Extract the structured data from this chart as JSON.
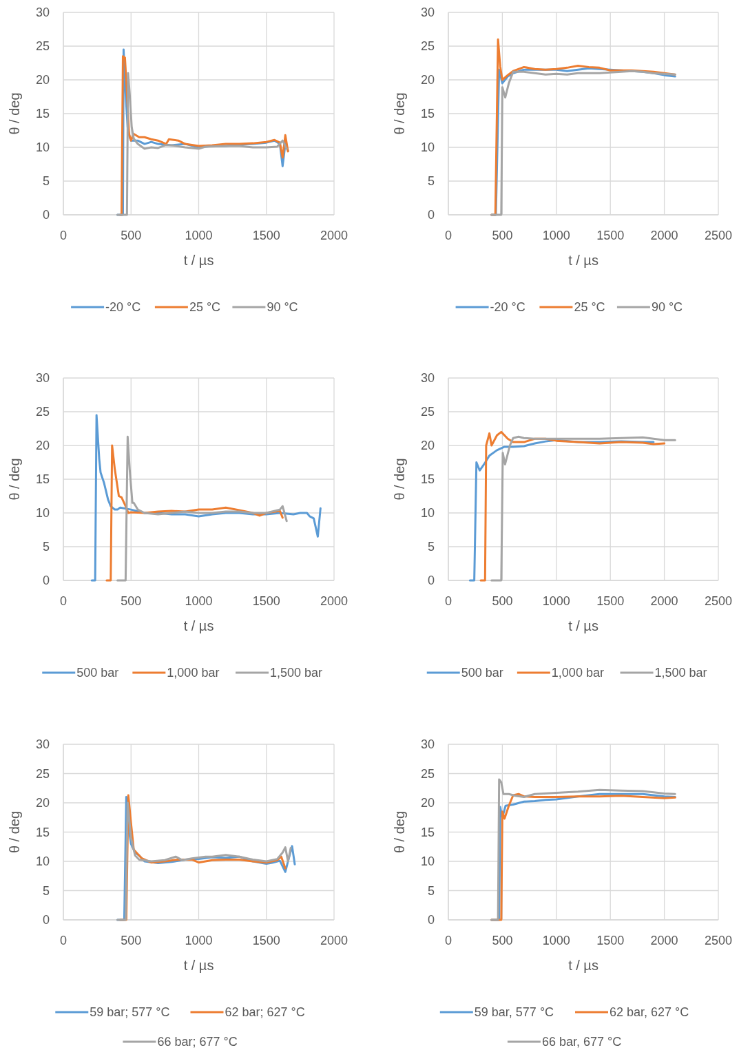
{
  "chart_data": [
    {
      "type": "line",
      "xlabel": "t / µs",
      "ylabel": "θ / deg",
      "xlim": [
        0,
        2000
      ],
      "xticks": [
        0,
        500,
        1000,
        1500,
        2000
      ],
      "ylim": [
        0,
        30
      ],
      "yticks": [
        0,
        5,
        10,
        15,
        20,
        25,
        30
      ],
      "grid": true,
      "legend": "bottom",
      "series": [
        {
          "name": "-20 °C",
          "color": "#5b9bd5",
          "x": [
            400,
            440,
            445,
            460,
            475,
            490,
            500,
            550,
            600,
            650,
            700,
            800,
            900,
            1000,
            1100,
            1200,
            1300,
            1400,
            1500,
            1560,
            1600,
            1620,
            1640,
            1660
          ],
          "values": [
            0,
            0,
            24.5,
            18,
            13,
            11.5,
            11,
            11,
            10.5,
            10.8,
            10.5,
            10.3,
            10.5,
            10.0,
            10.2,
            10.2,
            10.4,
            10.5,
            10.7,
            11,
            10.5,
            7.2,
            10.5,
            9.5
          ]
        },
        {
          "name": "25 °C",
          "color": "#ed7d31",
          "x": [
            420,
            430,
            440,
            455,
            470,
            485,
            500,
            520,
            560,
            600,
            650,
            700,
            760,
            780,
            850,
            900,
            1000,
            1100,
            1200,
            1300,
            1400,
            1500,
            1560,
            1600,
            1620,
            1640,
            1660
          ],
          "values": [
            0,
            0,
            23.5,
            23.3,
            18,
            12,
            11,
            12,
            11.5,
            11.5,
            11.2,
            11.0,
            10.5,
            11.2,
            11,
            10.5,
            10.2,
            10.3,
            10.5,
            10.5,
            10.6,
            10.8,
            11.1,
            10.7,
            8.5,
            11.8,
            9.4
          ]
        },
        {
          "name": "90 °C",
          "color": "#a5a5a5",
          "x": [
            400,
            470,
            478,
            490,
            505,
            520,
            550,
            600,
            650,
            700,
            750,
            800,
            900,
            1000,
            1050,
            1200,
            1300,
            1400,
            1500,
            1580,
            1620,
            1650
          ],
          "values": [
            0,
            0,
            21,
            18,
            13,
            11.3,
            10.5,
            9.8,
            10,
            9.9,
            10.3,
            10.3,
            10.0,
            9.8,
            10.1,
            10.2,
            10.2,
            10.0,
            10,
            10.1,
            11,
            9.8
          ]
        }
      ]
    },
    {
      "type": "line",
      "xlabel": "t / µs",
      "ylabel": "θ / deg",
      "xlim": [
        0,
        2500
      ],
      "xticks": [
        0,
        500,
        1000,
        1500,
        2000,
        2500
      ],
      "ylim": [
        0,
        30
      ],
      "yticks": [
        0,
        5,
        10,
        15,
        20,
        25,
        30
      ],
      "grid": true,
      "legend": "bottom",
      "series": [
        {
          "name": "-20 °C",
          "color": "#5b9bd5",
          "x": [
            400,
            440,
            470,
            500,
            550,
            600,
            700,
            800,
            900,
            1000,
            1100,
            1200,
            1300,
            1400,
            1500,
            1600,
            1700,
            1800,
            1900,
            2000,
            2100
          ],
          "values": [
            0,
            0,
            21.5,
            19.5,
            20.5,
            21,
            21.5,
            21.5,
            21.5,
            21.5,
            21.3,
            21.5,
            21.7,
            21.6,
            21.5,
            21.4,
            21.3,
            21.2,
            21,
            20.7,
            20.5
          ]
        },
        {
          "name": "25 °C",
          "color": "#ed7d31",
          "x": [
            400,
            435,
            460,
            480,
            500,
            550,
            600,
            700,
            800,
            900,
            1000,
            1100,
            1200,
            1300,
            1400,
            1500,
            1600,
            1700,
            1800,
            1900,
            2000,
            2100
          ],
          "values": [
            0,
            0,
            26,
            22,
            20,
            20.7,
            21.3,
            21.9,
            21.6,
            21.5,
            21.6,
            21.8,
            22.1,
            21.9,
            21.8,
            21.4,
            21.4,
            21.4,
            21.3,
            21.2,
            21,
            20.8
          ]
        },
        {
          "name": "90 °C",
          "color": "#a5a5a5",
          "x": [
            400,
            490,
            500,
            527,
            560,
            600,
            700,
            800,
            900,
            1000,
            1100,
            1200,
            1300,
            1400,
            1500,
            1600,
            1700,
            1800,
            1900,
            2000,
            2100
          ],
          "values": [
            0,
            0,
            18.9,
            17.4,
            19.5,
            21.2,
            21.2,
            21,
            20.8,
            20.9,
            20.8,
            21.0,
            21.0,
            21.0,
            21.1,
            21.2,
            21.3,
            21.2,
            21,
            20.9,
            20.8
          ]
        }
      ]
    },
    {
      "type": "line",
      "xlabel": "t / µs",
      "ylabel": "θ / deg",
      "xlim": [
        0,
        2000
      ],
      "xticks": [
        0,
        500,
        1000,
        1500,
        2000
      ],
      "ylim": [
        0,
        30
      ],
      "yticks": [
        0,
        5,
        10,
        15,
        20,
        25,
        30
      ],
      "grid": true,
      "legend": "bottom",
      "series": [
        {
          "name": "500 bar",
          "color": "#5b9bd5",
          "x": [
            210,
            235,
            245,
            265,
            275,
            300,
            330,
            350,
            380,
            400,
            420,
            500,
            600,
            700,
            800,
            900,
            1000,
            1100,
            1200,
            1300,
            1400,
            1500,
            1600,
            1700,
            1750,
            1800,
            1820,
            1850,
            1880,
            1900
          ],
          "values": [
            0,
            0,
            24.5,
            18,
            16,
            14.5,
            12,
            11,
            10.5,
            10.5,
            10.8,
            10.5,
            10,
            10,
            9.8,
            9.8,
            9.5,
            9.8,
            10,
            10,
            9.8,
            9.8,
            10,
            9.8,
            10,
            10,
            9.5,
            9.2,
            6.5,
            10.7
          ]
        },
        {
          "name": "1,000 bar",
          "color": "#ed7d31",
          "x": [
            320,
            350,
            360,
            380,
            410,
            430,
            460,
            480,
            500,
            600,
            700,
            800,
            900,
            1000,
            1100,
            1200,
            1300,
            1400,
            1450,
            1500,
            1600,
            1620
          ],
          "values": [
            0,
            0,
            20,
            16.5,
            12.5,
            12.3,
            11,
            10,
            10.1,
            10,
            10.2,
            10.3,
            10.2,
            10.5,
            10.5,
            10.8,
            10.4,
            10,
            9.6,
            10,
            10.3,
            9.3
          ]
        },
        {
          "name": "1,500 bar",
          "color": "#a5a5a5",
          "x": [
            400,
            460,
            475,
            490,
            510,
            520,
            550,
            600,
            700,
            800,
            900,
            1000,
            1100,
            1200,
            1300,
            1400,
            1500,
            1600,
            1620,
            1650
          ],
          "values": [
            0,
            0,
            21.3,
            16.5,
            11.5,
            11.5,
            10.5,
            10,
            9.8,
            10,
            10.2,
            10,
            10,
            10.2,
            10.2,
            10,
            10,
            10.5,
            11,
            8.8
          ]
        }
      ]
    },
    {
      "type": "line",
      "xlabel": "t / µs",
      "ylabel": "θ / deg",
      "xlim": [
        0,
        2500
      ],
      "xticks": [
        0,
        500,
        1000,
        1500,
        2000,
        2500
      ],
      "ylim": [
        0,
        30
      ],
      "yticks": [
        0,
        5,
        10,
        15,
        20,
        25,
        30
      ],
      "grid": true,
      "legend": "bottom",
      "series": [
        {
          "name": "500 bar",
          "color": "#5b9bd5",
          "x": [
            200,
            240,
            260,
            290,
            330,
            380,
            450,
            520,
            600,
            700,
            800,
            900,
            1000,
            1200,
            1400,
            1600,
            1800,
            1900
          ],
          "values": [
            0,
            0,
            17.5,
            16.3,
            17.2,
            18.5,
            19.3,
            19.8,
            19.8,
            19.9,
            20.3,
            20.6,
            20.8,
            20.5,
            20.5,
            20.6,
            20.5,
            20.5
          ]
        },
        {
          "name": "1,000 bar",
          "color": "#ed7d31",
          "x": [
            300,
            340,
            350,
            380,
            400,
            450,
            490,
            550,
            600,
            700,
            800,
            900,
            1000,
            1200,
            1400,
            1600,
            1800,
            1900,
            2000
          ],
          "values": [
            0,
            0,
            20,
            21.8,
            20,
            21.5,
            22,
            21,
            20.5,
            20.5,
            21,
            21,
            20.7,
            20.5,
            20.3,
            20.5,
            20.4,
            20.2,
            20.3
          ]
        },
        {
          "name": "1,500 bar",
          "color": "#a5a5a5",
          "x": [
            400,
            490,
            504,
            525,
            570,
            600,
            650,
            700,
            800,
            900,
            1000,
            1200,
            1400,
            1600,
            1800,
            1900,
            2000,
            2100
          ],
          "values": [
            0,
            0,
            18.9,
            17.2,
            20,
            21.1,
            21.3,
            21.1,
            21,
            21,
            21,
            21,
            21,
            21.1,
            21.2,
            21,
            20.8,
            20.8
          ]
        }
      ]
    },
    {
      "type": "line",
      "xlabel": "t / µs",
      "ylabel": "θ / deg",
      "xlim": [
        0,
        2000
      ],
      "xticks": [
        0,
        500,
        1000,
        1500,
        2000
      ],
      "ylim": [
        0,
        30
      ],
      "yticks": [
        0,
        5,
        10,
        15,
        20,
        25,
        30
      ],
      "grid": true,
      "legend": "bottom",
      "series": [
        {
          "name": "59 bar; 577 °C",
          "color": "#5b9bd5",
          "x": [
            400,
            450,
            465,
            480,
            500,
            530,
            560,
            600,
            700,
            800,
            900,
            1000,
            1100,
            1200,
            1300,
            1400,
            1500,
            1550,
            1600,
            1640,
            1660,
            1690,
            1710
          ],
          "values": [
            0,
            0,
            21,
            16,
            13,
            11.5,
            11,
            10,
            9.7,
            9.9,
            10.3,
            10.4,
            10.7,
            10.6,
            10.8,
            10,
            9.6,
            9.8,
            10.1,
            8.2,
            10,
            12.6,
            9.5
          ]
        },
        {
          "name": "62 bar; 627 °C",
          "color": "#ed7d31",
          "x": [
            420,
            465,
            480,
            500,
            520,
            540,
            580,
            650,
            750,
            850,
            950,
            1000,
            1100,
            1200,
            1300,
            1400,
            1500,
            1580,
            1610,
            1640
          ],
          "values": [
            0,
            0,
            21.3,
            16.5,
            12,
            11.5,
            10.5,
            9.8,
            10,
            10.3,
            10.3,
            9.8,
            10.2,
            10.3,
            10.3,
            10,
            9.8,
            10.2,
            10.8,
            8.8
          ]
        },
        {
          "name": "66 bar; 677 °C",
          "color": "#a5a5a5",
          "x": [
            400,
            460,
            475,
            500,
            530,
            560,
            650,
            750,
            830,
            880,
            950,
            1050,
            1100,
            1200,
            1300,
            1400,
            1500,
            1580,
            1620,
            1640,
            1660,
            1680
          ],
          "values": [
            0,
            0,
            20,
            14,
            11,
            10.3,
            10,
            10.2,
            10.8,
            10.2,
            10.5,
            10.8,
            10.8,
            11.1,
            10.8,
            10.3,
            10,
            10.4,
            11.5,
            12.4,
            10,
            12.3
          ]
        }
      ]
    },
    {
      "type": "line",
      "xlabel": "t / µs",
      "ylabel": "θ / deg",
      "xlim": [
        0,
        2500
      ],
      "xticks": [
        0,
        500,
        1000,
        1500,
        2000,
        2500
      ],
      "ylim": [
        0,
        30
      ],
      "yticks": [
        0,
        5,
        10,
        15,
        20,
        25,
        30
      ],
      "grid": true,
      "legend": "bottom",
      "series": [
        {
          "name": "59 bar, 577 °C",
          "color": "#5b9bd5",
          "x": [
            400,
            470,
            480,
            500,
            530,
            600,
            700,
            800,
            900,
            1000,
            1200,
            1400,
            1600,
            1800,
            2000,
            2100
          ],
          "values": [
            0,
            0,
            19.3,
            17.5,
            19.5,
            19.7,
            20.2,
            20.3,
            20.5,
            20.6,
            21.1,
            21.5,
            21.5,
            21.5,
            21.1,
            21.0
          ]
        },
        {
          "name": "62 bar, 627 °C",
          "color": "#ed7d31",
          "x": [
            400,
            490,
            500,
            520,
            560,
            600,
            650,
            700,
            800,
            1000,
            1200,
            1400,
            1600,
            1800,
            2000,
            2100
          ],
          "values": [
            0,
            0,
            18.5,
            17.3,
            19.5,
            21.3,
            21.5,
            21.1,
            21,
            21,
            21.1,
            21.1,
            21.2,
            21,
            20.8,
            20.9
          ]
        },
        {
          "name": "66 bar, 677 °C",
          "color": "#a5a5a5",
          "x": [
            400,
            460,
            470,
            490,
            510,
            560,
            620,
            700,
            800,
            1000,
            1200,
            1400,
            1600,
            1800,
            2000,
            2100
          ],
          "values": [
            0,
            0,
            24,
            23.5,
            21.5,
            21.5,
            21.2,
            21,
            21.5,
            21.7,
            21.9,
            22.2,
            22.1,
            22,
            21.6,
            21.5
          ]
        }
      ]
    }
  ]
}
